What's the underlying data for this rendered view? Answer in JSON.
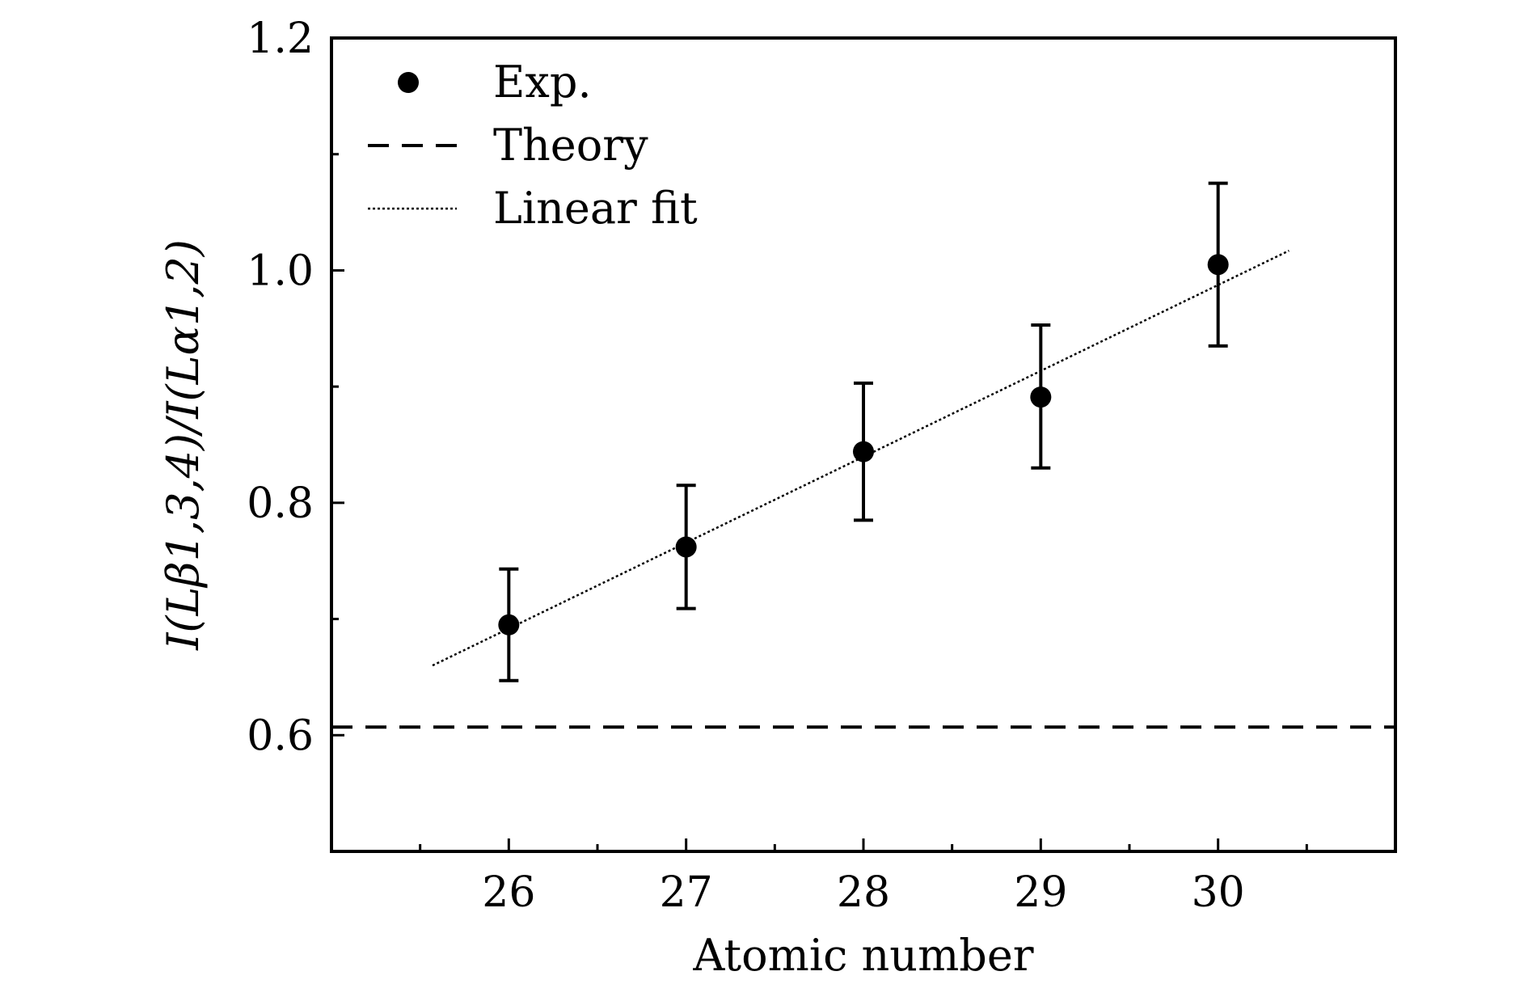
{
  "chart_data": {
    "type": "scatter",
    "xlabel": "Atomic number",
    "ylabel": "I(Lβ1,3,4)/I(Lα1,2)",
    "xlim": [
      25,
      31
    ],
    "ylim": [
      0.5,
      1.2
    ],
    "x_ticks": [
      26,
      27,
      28,
      29,
      30
    ],
    "x_tick_labels": [
      "26",
      "27",
      "28",
      "29",
      "30"
    ],
    "x_minor_ticks": [
      25.5,
      26.5,
      27.5,
      28.5,
      29.5,
      30.5
    ],
    "y_ticks": [
      0.6,
      0.8,
      1.0,
      1.2
    ],
    "y_tick_labels": [
      "0.6",
      "0.8",
      "1.0",
      "1.2"
    ],
    "y_minor_ticks": [
      0.7,
      0.9,
      1.1
    ],
    "grid": false,
    "legend_position": "top-left",
    "series": [
      {
        "name": "Exp.",
        "kind": "points_with_errorbars",
        "color": "#000000",
        "x": [
          26,
          27,
          28,
          29,
          30
        ],
        "y": [
          0.695,
          0.762,
          0.844,
          0.891,
          1.005
        ],
        "err_low": [
          0.647,
          0.709,
          0.785,
          0.83,
          0.935
        ],
        "err_high": [
          0.743,
          0.815,
          0.903,
          0.953,
          1.075
        ]
      },
      {
        "name": "Theory",
        "kind": "dashed_line",
        "color": "#000000",
        "x": [
          25,
          31
        ],
        "y": [
          0.607,
          0.607
        ]
      },
      {
        "name": "Linear fit",
        "kind": "dotted_line",
        "color": "#000000",
        "x": [
          25.57,
          30.4
        ],
        "y": [
          0.66,
          1.017
        ]
      }
    ]
  }
}
